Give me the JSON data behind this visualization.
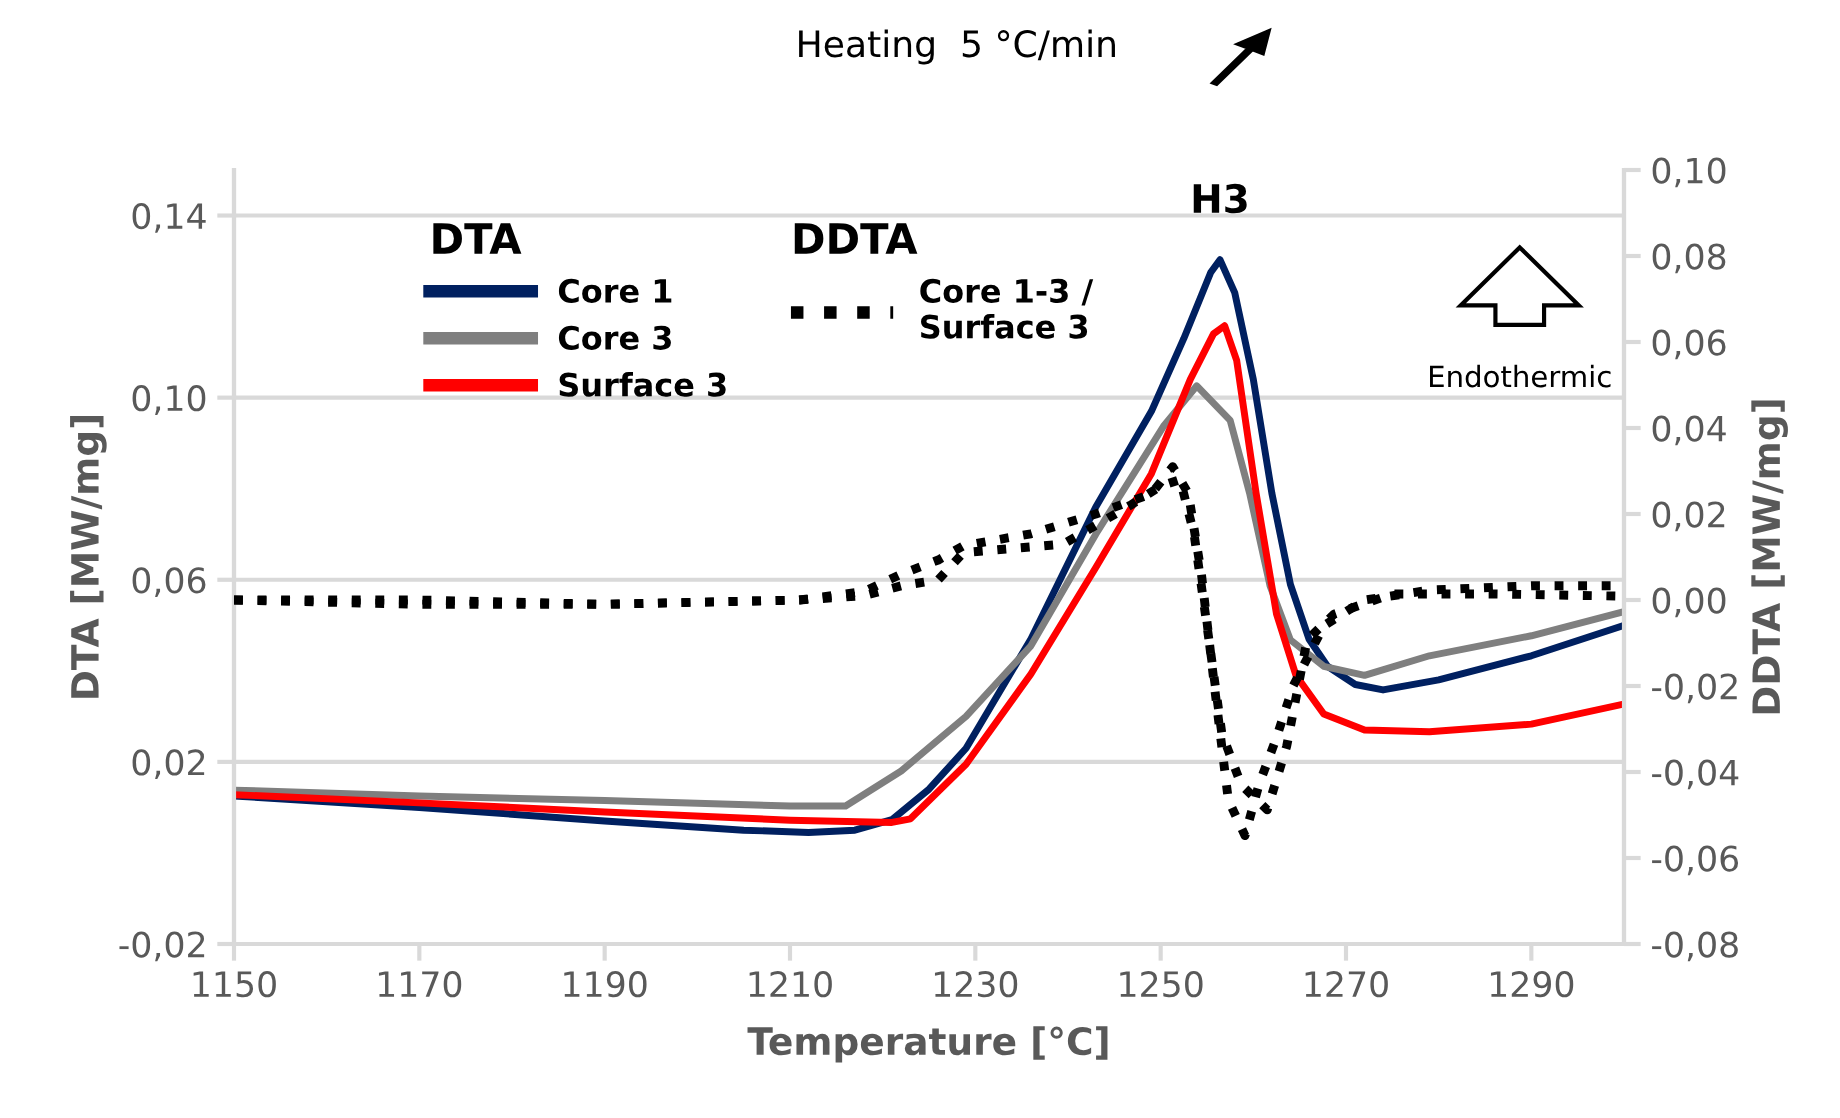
{
  "chart_data": {
    "type": "line",
    "xlabel": "Temperature [°C]",
    "ylabel": "DTA [MW/mg]",
    "y2label": "DDTA [MW/mg]",
    "annotations": [
      "DTA",
      "DDTA",
      {
        "text": "H3",
        "x": 1256.4,
        "y": 0.1303
      },
      "Endothermic",
      "Heating  5 °C/min"
    ],
    "xlim": [
      1150,
      1300
    ],
    "xticks": [
      1150,
      1170,
      1190,
      1210,
      1230,
      1250,
      1270,
      1290
    ],
    "ylim": [
      -0.02,
      0.15
    ],
    "yticks": [
      {
        "value": -0.02,
        "label": "-0,02"
      },
      {
        "value": 0.02,
        "label": "0,02"
      },
      {
        "value": 0.06,
        "label": "0,06"
      },
      {
        "value": 0.1,
        "label": "0,10"
      },
      {
        "value": 0.14,
        "label": "0,14"
      }
    ],
    "y2lim": [
      -0.08,
      0.1
    ],
    "y2ticks": [
      {
        "value": -0.08,
        "label": "-0,08"
      },
      {
        "value": -0.06,
        "label": "-0,06"
      },
      {
        "value": -0.04,
        "label": "-0,04"
      },
      {
        "value": -0.02,
        "label": "-0,02"
      },
      {
        "value": 0.0,
        "label": "0,00"
      },
      {
        "value": 0.02,
        "label": "0,02"
      },
      {
        "value": 0.04,
        "label": "0,04"
      },
      {
        "value": 0.06,
        "label": "0,06"
      },
      {
        "value": 0.08,
        "label": "0,08"
      },
      {
        "value": 0.1,
        "label": "0,10"
      }
    ],
    "grid": "y",
    "legend": "top left",
    "marker": "none",
    "series": [
      {
        "name": "Core 1",
        "color": "#002060",
        "line_style": "solid",
        "x": [
          1150,
          1170,
          1190,
          1205,
          1212,
          1217,
          1221,
          1225,
          1229,
          1236,
          1243,
          1249,
          1252.5,
          1255.4,
          1256.4,
          1258,
          1260,
          1262,
          1264,
          1266,
          1268,
          1271,
          1274,
          1280,
          1290,
          1300
        ],
        "values": [
          0.0125,
          0.01,
          0.007,
          0.005,
          0.0045,
          0.005,
          0.0073,
          0.014,
          0.023,
          0.047,
          0.076,
          0.097,
          0.113,
          0.1275,
          0.1303,
          0.123,
          0.104,
          0.079,
          0.059,
          0.047,
          0.041,
          0.037,
          0.0358,
          0.038,
          0.0433,
          0.05
        ]
      },
      {
        "name": "Core 3",
        "color": "#7f7f7f",
        "line_style": "solid",
        "x": [
          1150,
          1170,
          1190,
          1210,
          1216,
          1222,
          1229,
          1236,
          1243,
          1250.3,
          1253.9,
          1257.5,
          1259.6,
          1261.8,
          1264,
          1267.6,
          1272,
          1279,
          1290,
          1300
        ],
        "values": [
          0.0138,
          0.0125,
          0.0115,
          0.0103,
          0.0103,
          0.018,
          0.03,
          0.0455,
          0.07,
          0.0937,
          0.1026,
          0.095,
          0.079,
          0.0587,
          0.0468,
          0.041,
          0.039,
          0.0433,
          0.0477,
          0.053
        ]
      },
      {
        "name": "Surface 3",
        "color": "#ff0000",
        "line_style": "solid",
        "x": [
          1150,
          1170,
          1190,
          1210,
          1221,
          1223,
          1229,
          1236,
          1243,
          1249,
          1253.2,
          1255.7,
          1256.9,
          1258.2,
          1260.3,
          1262.5,
          1264.6,
          1267.6,
          1272,
          1279,
          1290,
          1300
        ],
        "values": [
          0.0128,
          0.011,
          0.009,
          0.0072,
          0.0067,
          0.0075,
          0.0195,
          0.0393,
          0.0627,
          0.0833,
          0.104,
          0.114,
          0.1158,
          0.1082,
          0.079,
          0.0525,
          0.039,
          0.0305,
          0.027,
          0.0266,
          0.0283,
          0.0327
        ]
      },
      {
        "name": "Core 1-3 / Surface 3",
        "color": "#000000",
        "axis": "y2",
        "line_style": "dotted",
        "x": [
          1150,
          1170,
          1190,
          1211,
          1218,
          1222,
          1226,
          1228.7,
          1236,
          1243,
          1249,
          1251.3,
          1253,
          1254.4,
          1255.9,
          1257.3,
          1259.1,
          1260.6,
          1262.5,
          1264.3,
          1267.6,
          1272,
          1279,
          1290,
          1300
        ],
        "values": [
          0.0,
          -0.001,
          -0.001,
          0.0,
          0.002,
          0.006,
          0.0093,
          0.0126,
          0.0154,
          0.02,
          0.0247,
          0.031,
          0.0247,
          0.006,
          -0.0218,
          -0.0465,
          -0.0548,
          -0.043,
          -0.032,
          -0.02,
          -0.006,
          0.0,
          0.0023,
          0.0033,
          0.0033
        ]
      },
      {
        "color": "#000000",
        "axis": "y2",
        "line_style": "dotted",
        "x": [
          1150,
          1170,
          1190,
          1211,
          1218,
          1222,
          1226,
          1228.7,
          1239.5,
          1246.7,
          1250,
          1252.1,
          1253.6,
          1255,
          1256.6,
          1258.7,
          1261.5,
          1263.6,
          1265.8,
          1268.7,
          1275,
          1286,
          1300
        ],
        "values": [
          0.0,
          0.0,
          -0.001,
          0.0,
          0.001,
          0.0033,
          0.0047,
          0.011,
          0.013,
          0.022,
          0.0265,
          0.028,
          0.0154,
          -0.006,
          -0.031,
          -0.043,
          -0.0488,
          -0.034,
          -0.0093,
          -0.0033,
          0.0014,
          0.0014,
          0.0009
        ]
      }
    ]
  }
}
